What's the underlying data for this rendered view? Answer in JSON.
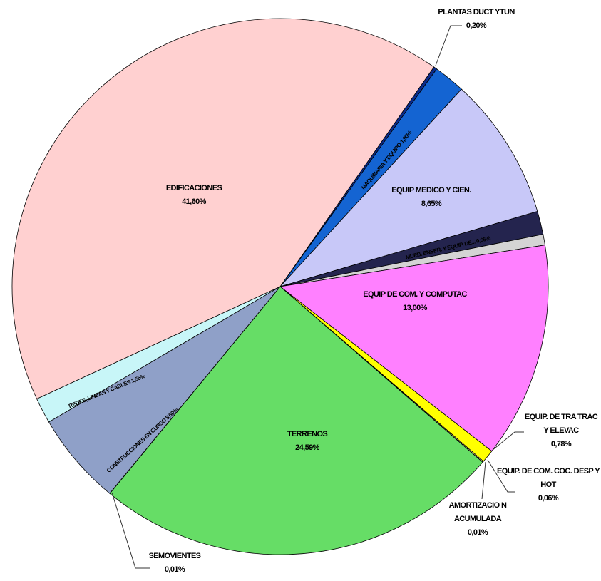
{
  "chart_data": {
    "type": "pie",
    "categories": [
      "PLANTAS DUCT YTUN",
      "MAQUINARIA Y EQUIPO",
      "EQUIP MEDICO Y CIEN.",
      null,
      "MUEB. ENSER. Y EQUIP. DE...",
      "EQUIP DE COM. Y COMPUTAC",
      "EQUIP. DE TRA TRAC Y ELEVAC",
      "EQUIP. DE COM. COC. DESP Y HOT",
      "AMORTIZACIO N ACUMULADA",
      "TERRENOS",
      "SEMOVIENTES",
      "CONSTRUCCIONES EN CURSO",
      "REDES, LINEAS Y CABLES",
      "EDIFICACIONES"
    ],
    "values": [
      0.2,
      1.9,
      8.65,
      1.4,
      0.65,
      13.0,
      0.78,
      0.06,
      0.01,
      24.59,
      0.01,
      5.6,
      1.55,
      41.6
    ],
    "value_labels": [
      "0,20%",
      "1,90%",
      "8,65%",
      null,
      "0,65%",
      "13,00%",
      "0,78%",
      "0,06%",
      "0,01%",
      "24,59%",
      "0,01%",
      "5,60%",
      "1,55%",
      "41,60%"
    ],
    "colors": [
      "#0a2a8a",
      "#1464d2",
      "#c8c8f8",
      "#24244e",
      "#d4d4d4",
      "#ff80ff",
      "#ffff00",
      "#ffffb0",
      "#e0e0e0",
      "#66dd66",
      "#c0c0c0",
      "#8fa0c8",
      "#c8f6f8",
      "#ffd0d0"
    ]
  }
}
